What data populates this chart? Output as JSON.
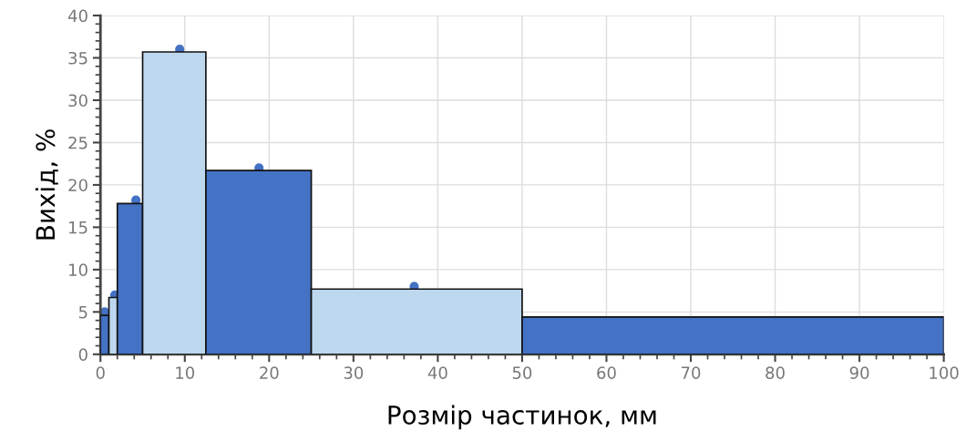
{
  "chart_data": {
    "type": "histogram",
    "xlabel": "Розмір частинок, мм",
    "ylabel": "Вихід, %",
    "bins": [
      0,
      1,
      2,
      5,
      12.5,
      25,
      50,
      100
    ],
    "series": [
      {
        "values": [
          4.6,
          6.7,
          17.8,
          35.7,
          21.7,
          7.7,
          4.4
        ],
        "colors": [
          "#4472c4",
          "#bdd7ee",
          "#4472c4",
          "#bdd7ee",
          "#4472c4",
          "#bdd7ee",
          "#4472c4"
        ]
      },
      {
        "type": "scatter",
        "x": [
          0.5,
          1.7,
          4.2,
          9.4,
          18.8,
          37.2
        ],
        "values": [
          5,
          7,
          18.2,
          36,
          22,
          8
        ],
        "color": "#4472c4"
      }
    ],
    "marker": "circle",
    "xlim": [
      0,
      100
    ],
    "ylim": [
      0,
      40
    ],
    "xticks": [
      0,
      10,
      20,
      30,
      40,
      50,
      60,
      70,
      80,
      90,
      100
    ],
    "yticks": [
      0,
      5,
      10,
      15,
      20,
      25,
      30,
      35,
      40
    ],
    "grid": true
  }
}
